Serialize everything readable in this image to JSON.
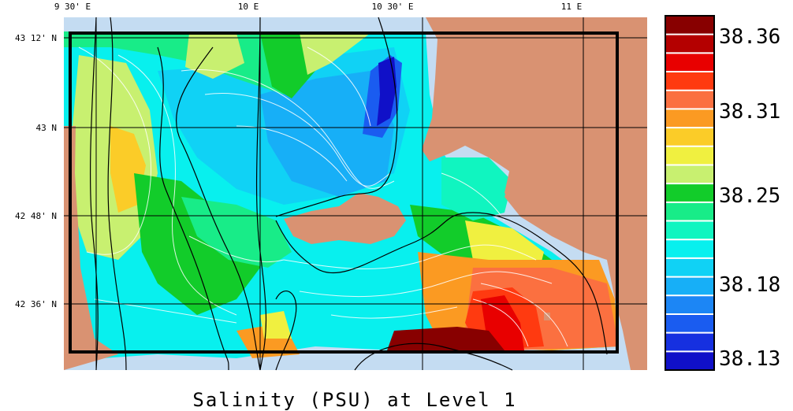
{
  "map": {
    "title": "Salinity (PSU) at Level 1",
    "longitude_labels": [
      "9 30' E",
      "10 E",
      "10 30' E",
      "11 E"
    ],
    "latitude_labels": [
      "43 12' N",
      "43 N",
      "42 48' N",
      "42 36' N"
    ],
    "land_color": "#d99272",
    "shelf_color": "#c4dcf2"
  },
  "colorbar": {
    "labels": [
      "38.36",
      "38.31",
      "38.25",
      "38.18",
      "38.13"
    ],
    "colors": [
      "#1010c8",
      "#1630e0",
      "#1a5cf0",
      "#1c86f5",
      "#17aff7",
      "#10d2f5",
      "#08f0ee",
      "#10f5c0",
      "#18ec88",
      "#12cc2a",
      "#c8f070",
      "#f0f040",
      "#fbcc28",
      "#fb9a22",
      "#fb7040",
      "#ff3a10",
      "#e80000",
      "#b40000",
      "#880000"
    ]
  }
}
